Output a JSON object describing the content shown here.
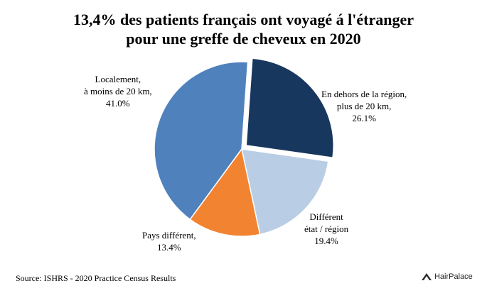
{
  "title_line1": "13,4% des patients français ont voyagé á l'étranger",
  "title_line2": "pour une greffe de cheveux en 2020",
  "source": "Source: ISHRS - 2020 Practice Census Results",
  "brand": "HairPalace",
  "colors": {
    "localement": "#4f81bd",
    "hors_region": "#17375e",
    "different_etat": "#b9cde5",
    "pays_different": "#f28330",
    "border": "#ffffff"
  },
  "chart_data": {
    "type": "pie",
    "title": "13,4% des patients français ont voyagé á l'étranger pour une greffe de cheveux en 2020",
    "slices": [
      {
        "key": "hors_region",
        "lines": [
          "En dehors de la région,",
          "plus de 20 km,"
        ],
        "value": 26.1,
        "value_label": "26.1%"
      },
      {
        "key": "different_etat",
        "lines": [
          "Différent",
          "état / région"
        ],
        "value": 19.4,
        "value_label": "19.4%"
      },
      {
        "key": "pays_different",
        "lines": [
          "Pays différent,"
        ],
        "value": 13.4,
        "value_label": "13.4%"
      },
      {
        "key": "localement",
        "lines": [
          "Localement,",
          "à moins de 20 km,"
        ],
        "value": 41.0,
        "value_label": "41.0%"
      }
    ]
  }
}
